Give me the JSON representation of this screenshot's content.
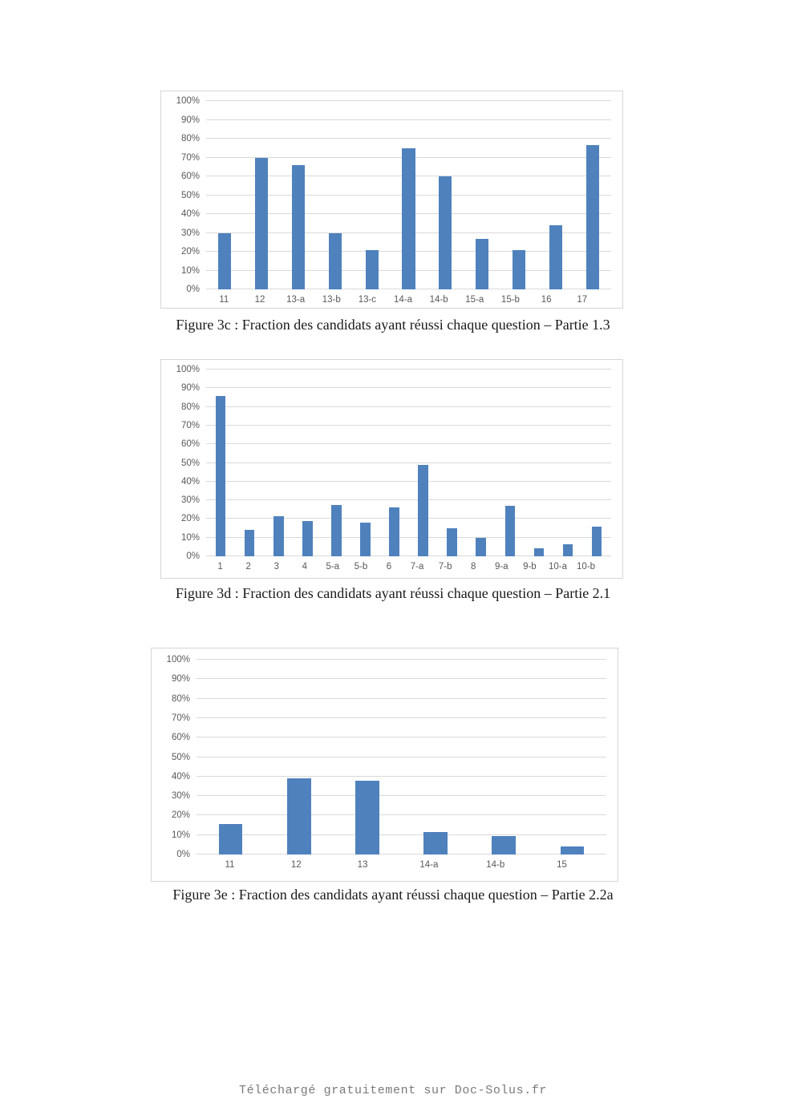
{
  "figures": [
    {
      "caption": "Figure 3c : Fraction des candidats ayant réussi chaque question – Partie 1.3"
    },
    {
      "caption": "Figure 3d : Fraction des candidats ayant réussi chaque question – Partie 2.1"
    },
    {
      "caption": "Figure 3e : Fraction des candidats ayant réussi chaque question – Partie 2.2a"
    }
  ],
  "chart_data": [
    {
      "type": "bar",
      "title": "",
      "categories": [
        "11",
        "12",
        "13-a",
        "13-b",
        "13-c",
        "14-a",
        "14-b",
        "15-a",
        "15-b",
        "16",
        "17"
      ],
      "values": [
        30,
        70,
        66,
        30,
        21,
        75,
        60,
        27,
        21,
        34,
        76.5
      ],
      "xlabel": "",
      "ylabel": "",
      "ylim": [
        0,
        100
      ],
      "y_tick_step": 10,
      "y_tick_suffix": "%",
      "grid": true,
      "legend": false,
      "bar_color": "#4f81bd",
      "gridline_color": "#d9d9d9"
    },
    {
      "type": "bar",
      "title": "",
      "categories": [
        "1",
        "2",
        "3",
        "4",
        "5-a",
        "5-b",
        "6",
        "7-a",
        "7-b",
        "8",
        "9-a",
        "9-b",
        "10-a",
        "10-b"
      ],
      "values": [
        86,
        14,
        21.5,
        19,
        27.5,
        18,
        26,
        49,
        15,
        10,
        27,
        4.5,
        6.5,
        16
      ],
      "xlabel": "",
      "ylabel": "",
      "ylim": [
        0,
        100
      ],
      "y_tick_step": 10,
      "y_tick_suffix": "%",
      "grid": true,
      "legend": false,
      "bar_color": "#4f81bd",
      "gridline_color": "#d9d9d9"
    },
    {
      "type": "bar",
      "title": "",
      "categories": [
        "11",
        "12",
        "13",
        "14-a",
        "14-b",
        "15"
      ],
      "values": [
        15.5,
        39,
        38,
        11.5,
        9.5,
        4
      ],
      "xlabel": "",
      "ylabel": "",
      "ylim": [
        0,
        100
      ],
      "y_tick_step": 10,
      "y_tick_suffix": "%",
      "grid": true,
      "legend": false,
      "bar_color": "#4f81bd",
      "gridline_color": "#d9d9d9"
    }
  ],
  "footer": {
    "text": "Téléchargé gratuitement sur Doc-Solus.fr"
  }
}
